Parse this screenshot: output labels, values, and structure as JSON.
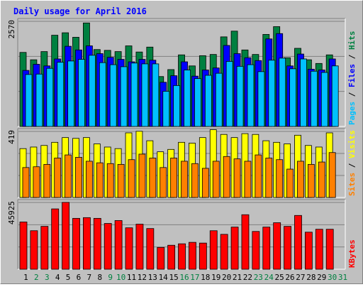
{
  "chart_data": {
    "type": "bar",
    "title": "Daily usage for April 2016",
    "categories": [
      "1",
      "2",
      "3",
      "4",
      "5",
      "6",
      "7",
      "8",
      "9",
      "10",
      "11",
      "12",
      "13",
      "14",
      "15",
      "16",
      "17",
      "18",
      "19",
      "20",
      "21",
      "22",
      "23",
      "24",
      "25",
      "26",
      "27",
      "28",
      "29",
      "30",
      "31"
    ],
    "weekend_days": [
      "2",
      "3",
      "9",
      "10",
      "16",
      "17",
      "23",
      "24",
      "30",
      "31"
    ],
    "grid": true,
    "panels": [
      {
        "id": "hits",
        "ymax": 2570,
        "ylabel_parts": [
          "Pages",
          "Files",
          "Hits"
        ],
        "series": [
          {
            "name": "Hits",
            "color": "#008040",
            "values": [
              1810,
              1630,
              1830,
              2230,
              2290,
              2180,
              2530,
              1880,
              1860,
              1830,
              1970,
              1820,
              1940,
              1220,
              1390,
              1750,
              1480,
              1730,
              1760,
              2190,
              2330,
              1870,
              1760,
              2250,
              2440,
              1680,
              1910,
              1630,
              1540,
              1750
            ]
          },
          {
            "name": "Files",
            "color": "#0000ff",
            "values": [
              1370,
              1520,
              1480,
              1650,
              1960,
              1870,
              1970,
              1780,
              1690,
              1640,
              1580,
              1640,
              1620,
              1080,
              1240,
              1580,
              1230,
              1380,
              1430,
              1980,
              1780,
              1680,
              1610,
              2140,
              2270,
              1480,
              1770,
              1400,
              1380,
              1650
            ]
          },
          {
            "name": "Pages",
            "color": "#00c0ff",
            "values": [
              1270,
              1280,
              1420,
              1570,
              1600,
              1640,
              1740,
              1560,
              1510,
              1460,
              1550,
              1530,
              1530,
              860,
              1000,
              1380,
              1170,
              1250,
              1300,
              1590,
              1470,
              1510,
              1340,
              1620,
              1670,
              1410,
              1650,
              1350,
              1320,
              1480
            ]
          }
        ]
      },
      {
        "id": "visits",
        "ymax": 419,
        "ylabel_parts": [
          "Sites",
          "Visits"
        ],
        "series": [
          {
            "name": "Visits",
            "color": "#ffff00",
            "values": [
              310,
              320,
              330,
              350,
              380,
              375,
              380,
              340,
              320,
              310,
              410,
              420,
              360,
              290,
              305,
              350,
              345,
              380,
              430,
              400,
              380,
              405,
              400,
              360,
              350,
              340,
              395,
              330,
              320,
              410
            ]
          },
          {
            "name": "Sites",
            "color": "#ff8000",
            "values": [
              190,
              195,
              210,
              250,
              270,
              255,
              230,
              220,
              215,
              210,
              240,
              275,
              250,
              190,
              250,
              230,
              215,
              185,
              230,
              260,
              245,
              230,
              270,
              250,
              240,
              180,
              230,
              210,
              225,
              285
            ]
          }
        ]
      },
      {
        "id": "kbytes",
        "ymax": 45925,
        "ylabel_parts": [
          "KBytes"
        ],
        "series": [
          {
            "name": "KBytes",
            "color": "#ff0000",
            "values": [
              32500,
              26500,
              29500,
              41500,
              46000,
              35000,
              35500,
              35000,
              31500,
              33500,
              28500,
              31000,
              28000,
              15000,
              16500,
              17500,
              18500,
              18000,
              26500,
              24000,
              29000,
              37500,
              26000,
              29000,
              32000,
              29500,
              37000,
              25500,
              27500,
              27500
            ]
          }
        ]
      }
    ]
  },
  "colors": {
    "background": "#c0c0c0",
    "title": "#0000ff",
    "weekday_label": "#000000",
    "weekend_label": "#008040",
    "grid": "#808080"
  }
}
